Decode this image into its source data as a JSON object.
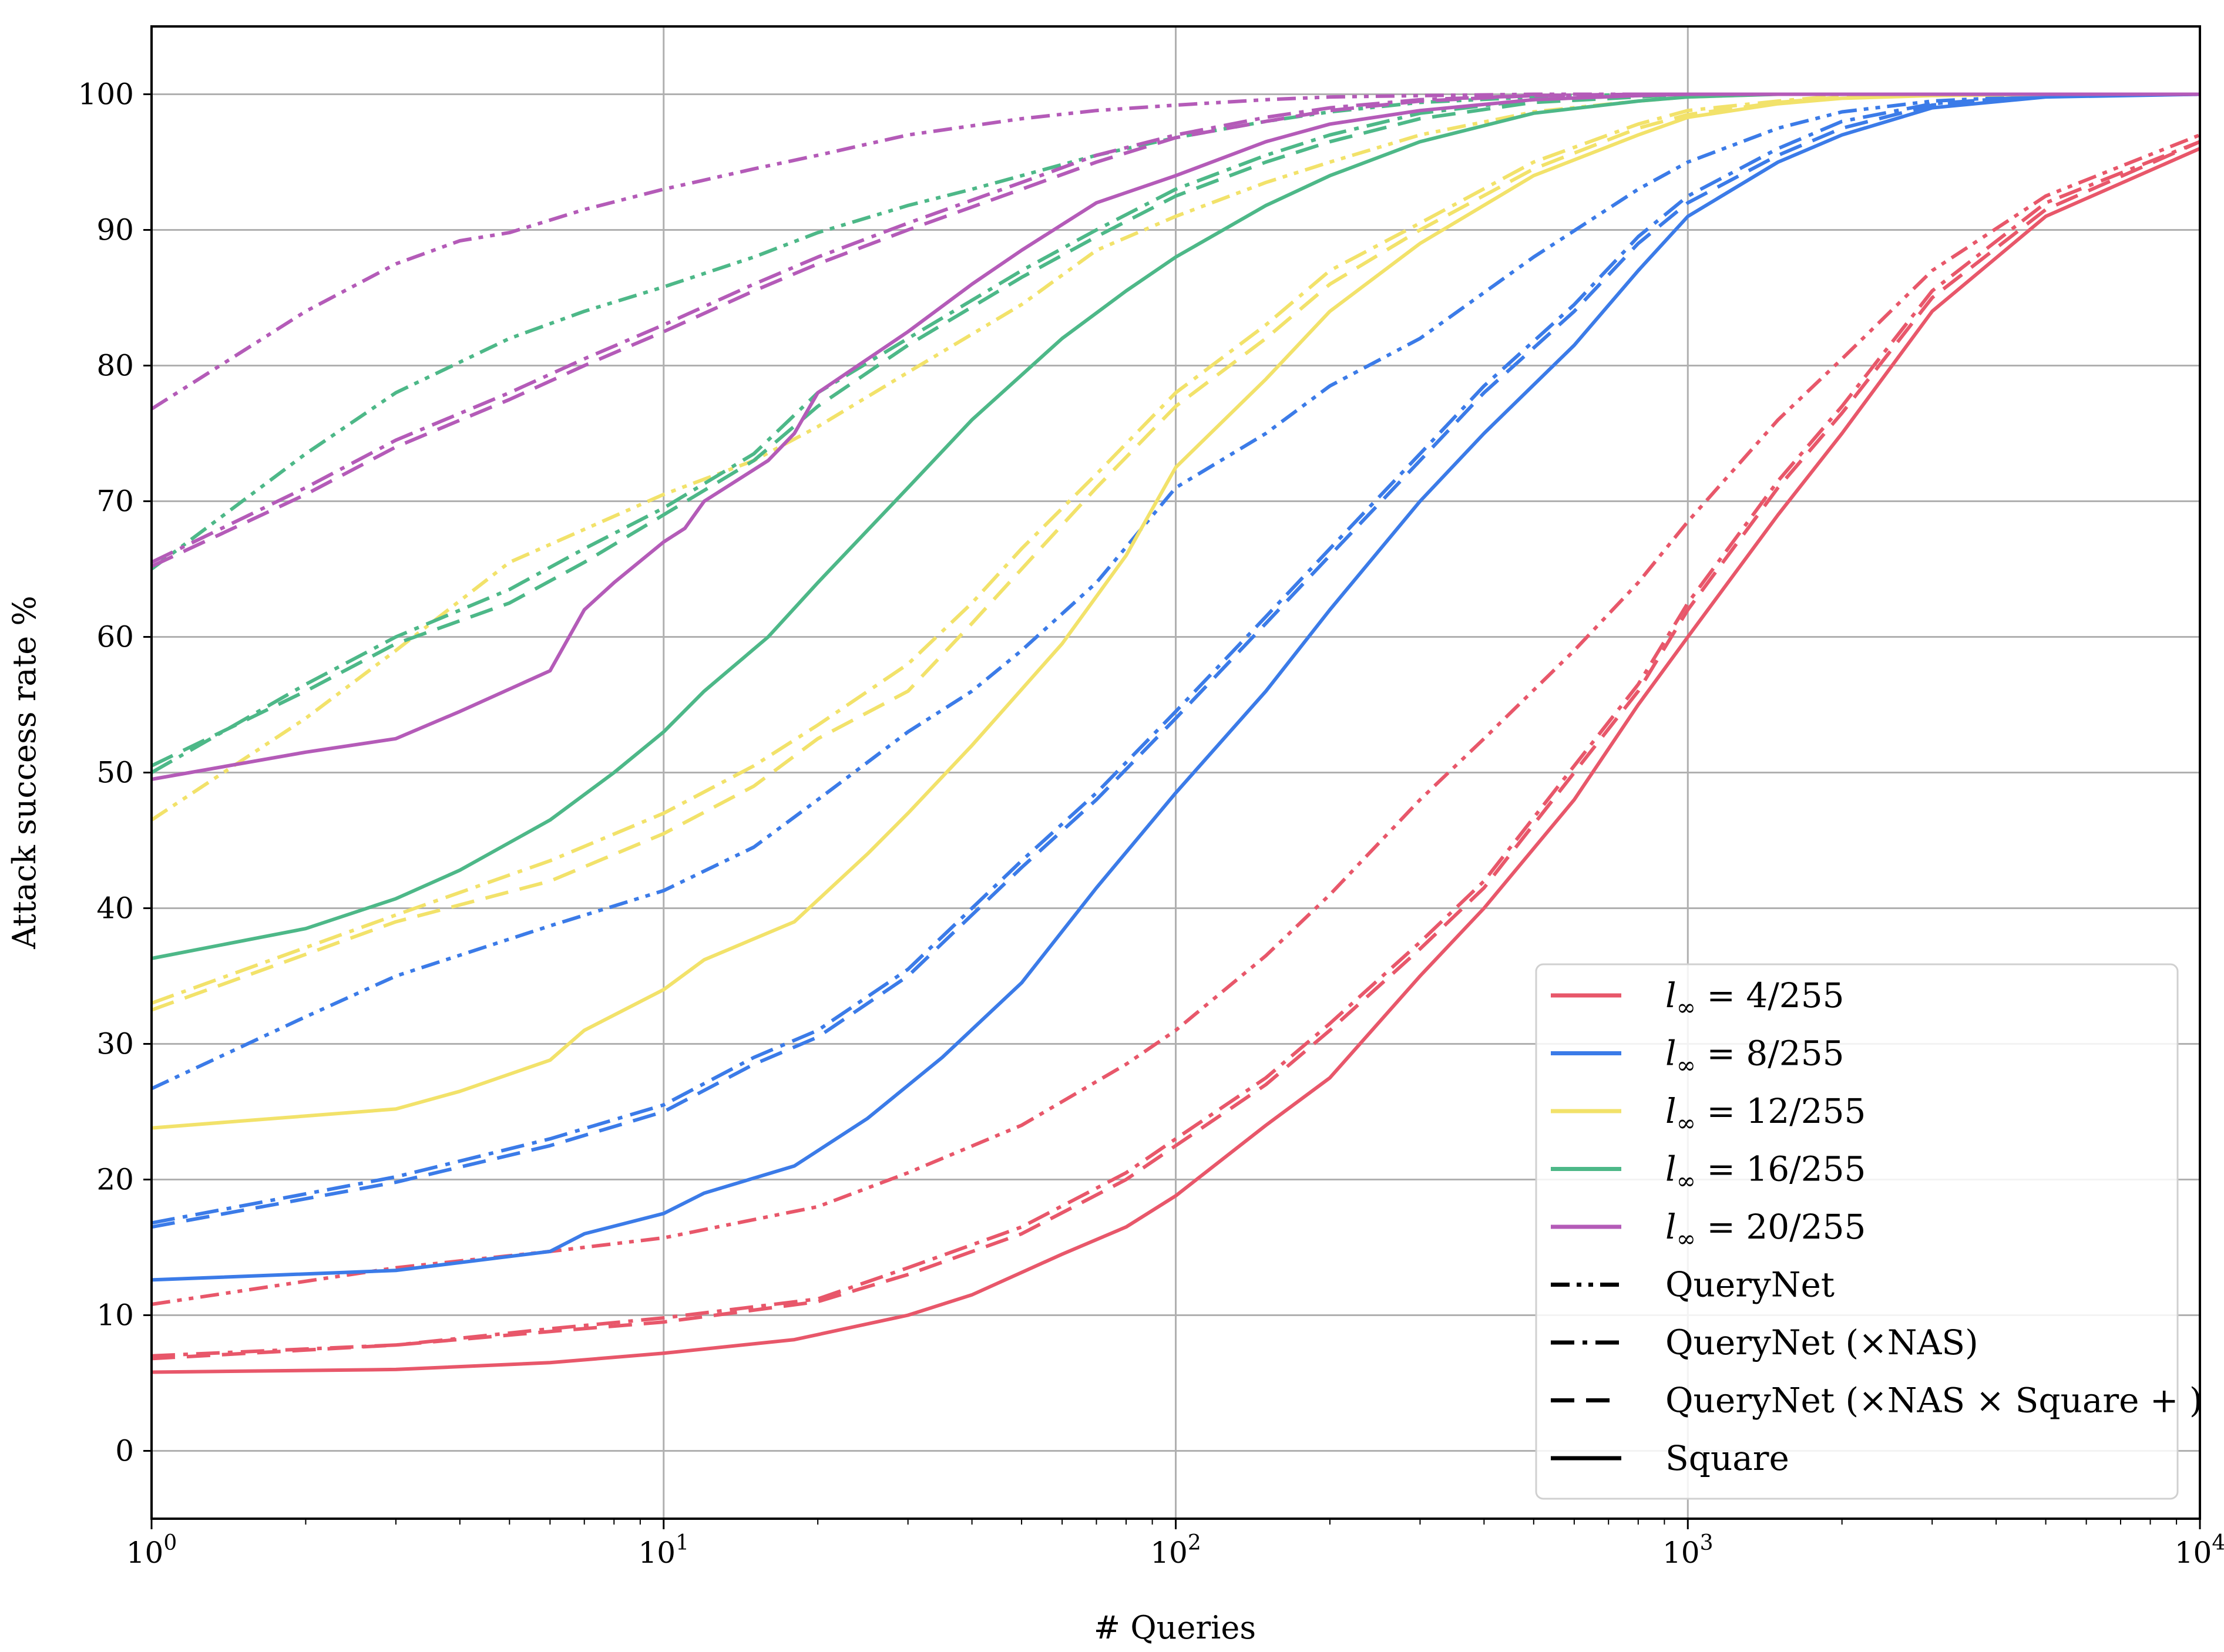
{
  "chart_data": {
    "type": "line",
    "xscale": "log",
    "xlabel": "# Queries",
    "ylabel": "Attack success rate %",
    "xlim": [
      1,
      10000
    ],
    "ylim": [
      -5,
      105
    ],
    "grid": true,
    "x_tick_labels": [
      {
        "base": "10",
        "exp": "0",
        "value": 1
      },
      {
        "base": "10",
        "exp": "1",
        "value": 10
      },
      {
        "base": "10",
        "exp": "2",
        "value": 100
      },
      {
        "base": "10",
        "exp": "3",
        "value": 1000
      },
      {
        "base": "10",
        "exp": "4",
        "value": 10000
      }
    ],
    "y_tick_labels": [
      "0",
      "10",
      "20",
      "30",
      "40",
      "50",
      "60",
      "70",
      "80",
      "90",
      "100"
    ],
    "legend_position": "lower-right",
    "legend_colors": [
      {
        "label_prefix": "l",
        "label_sub": "∞",
        "label_suffix": " = 4/255",
        "color": "#e8576a"
      },
      {
        "label_prefix": "l",
        "label_sub": "∞",
        "label_suffix": " = 8/255",
        "color": "#3b7be8"
      },
      {
        "label_prefix": "l",
        "label_sub": "∞",
        "label_suffix": " = 12/255",
        "color": "#f2e26a"
      },
      {
        "label_prefix": "l",
        "label_sub": "∞",
        "label_suffix": " = 16/255",
        "color": "#4db888"
      },
      {
        "label_prefix": "l",
        "label_sub": "∞",
        "label_suffix": " = 20/255",
        "color": "#b45bb8"
      }
    ],
    "legend_styles": [
      {
        "label": "QueryNet",
        "dash": "dashdotdot"
      },
      {
        "label": "QueryNet (×NAS)",
        "dash": "dashdot"
      },
      {
        "label": "QueryNet (×NAS × Square + )",
        "dash": "dashed"
      },
      {
        "label": "Square",
        "dash": "solid"
      }
    ],
    "series": [
      {
        "name": "l∞=4/255 Square",
        "color": "#e8576a",
        "dash": "solid",
        "x": [
          1,
          3,
          6,
          10,
          18,
          30,
          40,
          60,
          80,
          100,
          150,
          200,
          300,
          400,
          600,
          800,
          1000,
          1500,
          2000,
          3000,
          5000,
          10000
        ],
        "y": [
          5.8,
          6.0,
          6.5,
          7.2,
          8.2,
          10,
          11.5,
          14.5,
          16.5,
          18.8,
          24,
          27.5,
          35,
          40,
          48,
          55,
          60,
          69,
          75,
          84,
          91,
          96
        ]
      },
      {
        "name": "l∞=4/255 QueryNet (×NAS×Square+)",
        "color": "#e8576a",
        "dash": "dashed",
        "x": [
          1,
          3,
          6,
          10,
          20,
          30,
          50,
          80,
          100,
          150,
          200,
          300,
          400,
          600,
          800,
          1000,
          1500,
          2000,
          3000,
          5000,
          10000
        ],
        "y": [
          6.8,
          7.8,
          8.8,
          9.5,
          11,
          13,
          16,
          20,
          22.5,
          27,
          31,
          37,
          41.5,
          50,
          56,
          62,
          71,
          76.5,
          85,
          91.5,
          96.5
        ]
      },
      {
        "name": "l∞=4/255 QueryNet (×NAS)",
        "color": "#e8576a",
        "dash": "dashdot",
        "x": [
          1,
          3,
          6,
          10,
          20,
          30,
          50,
          80,
          100,
          150,
          200,
          300,
          400,
          600,
          800,
          1000,
          1500,
          2000,
          3000,
          5000,
          10000
        ],
        "y": [
          7.0,
          7.8,
          9.0,
          9.8,
          11.2,
          13.5,
          16.5,
          20.5,
          23,
          27.5,
          31.5,
          37.5,
          42,
          50.5,
          56.5,
          62.5,
          71.5,
          77,
          85.5,
          92,
          96.5
        ]
      },
      {
        "name": "l∞=4/255 QueryNet",
        "color": "#e8576a",
        "dash": "dashdotdot",
        "x": [
          1,
          3,
          6,
          10,
          20,
          30,
          50,
          80,
          100,
          150,
          200,
          300,
          400,
          600,
          800,
          1000,
          1500,
          2000,
          3000,
          5000,
          10000
        ],
        "y": [
          10.8,
          13.5,
          14.7,
          15.7,
          18,
          20.5,
          24,
          28.5,
          31,
          36.5,
          41,
          48,
          52.5,
          59,
          64,
          68.5,
          76,
          80.5,
          87,
          92.5,
          97
        ]
      },
      {
        "name": "l∞=8/255 Square",
        "color": "#3b7be8",
        "dash": "solid",
        "x": [
          1,
          3,
          6,
          7,
          10,
          12,
          18,
          25,
          35,
          50,
          70,
          100,
          150,
          200,
          300,
          400,
          600,
          800,
          1000,
          1500,
          2000,
          3000,
          5000,
          10000
        ],
        "y": [
          12.6,
          13.3,
          14.7,
          16,
          17.5,
          19,
          21,
          24.5,
          29,
          34.5,
          41.5,
          48.5,
          56,
          62,
          70,
          75,
          81.5,
          87,
          91,
          95,
          97,
          99,
          99.8,
          100
        ]
      },
      {
        "name": "l∞=8/255 QueryNet (×NAS×Square+)",
        "color": "#3b7be8",
        "dash": "dashed",
        "x": [
          1,
          3,
          6,
          10,
          15,
          20,
          30,
          50,
          70,
          100,
          150,
          200,
          300,
          400,
          600,
          800,
          1000,
          1500,
          2000,
          3000,
          5000,
          10000
        ],
        "y": [
          16.5,
          19.8,
          22.5,
          25,
          28.5,
          30.5,
          35,
          43,
          48,
          54,
          61,
          66,
          73,
          78,
          84,
          89,
          92,
          95.5,
          97.5,
          99.2,
          99.9,
          100
        ]
      },
      {
        "name": "l∞=8/255 QueryNet (×NAS)",
        "color": "#3b7be8",
        "dash": "dashdot",
        "x": [
          1,
          3,
          6,
          10,
          15,
          20,
          30,
          50,
          70,
          100,
          150,
          200,
          300,
          400,
          600,
          800,
          1000,
          1500,
          2000,
          3000,
          5000,
          10000
        ],
        "y": [
          16.8,
          20.2,
          23,
          25.5,
          29,
          31,
          35.5,
          43.5,
          48.5,
          54.5,
          61.5,
          66.5,
          73.5,
          78.5,
          84.5,
          89.5,
          92.5,
          96,
          98,
          99.3,
          99.9,
          100
        ]
      },
      {
        "name": "l∞=8/255 QueryNet",
        "color": "#3b7be8",
        "dash": "dashdotdot",
        "x": [
          1,
          2,
          3,
          6,
          10,
          15,
          20,
          30,
          40,
          50,
          70,
          100,
          150,
          200,
          300,
          500,
          800,
          1000,
          1500,
          2000,
          3000,
          5000,
          10000
        ],
        "y": [
          26.7,
          32,
          35,
          38.7,
          41.3,
          44.5,
          48,
          53,
          56,
          59,
          64,
          71,
          75,
          78.5,
          82,
          88,
          93,
          95,
          97.5,
          98.7,
          99.5,
          99.9,
          100
        ]
      },
      {
        "name": "l∞=12/255 Square",
        "color": "#f2e26a",
        "dash": "solid",
        "x": [
          1,
          3,
          4,
          6,
          7,
          10,
          12,
          18,
          25,
          30,
          40,
          60,
          80,
          100,
          150,
          200,
          300,
          500,
          800,
          1000,
          1500,
          2000,
          3000,
          5000,
          10000
        ],
        "y": [
          23.8,
          25.2,
          26.5,
          28.8,
          31,
          34,
          36.2,
          39,
          44,
          47,
          52,
          59.5,
          66,
          72.5,
          79,
          84,
          89,
          94,
          97,
          98.3,
          99.3,
          99.7,
          99.9,
          100,
          100
        ]
      },
      {
        "name": "l∞=12/255 QueryNet (×NAS×Square+)",
        "color": "#f2e26a",
        "dash": "dashed",
        "x": [
          1,
          3,
          6,
          10,
          15,
          20,
          30,
          40,
          50,
          70,
          100,
          150,
          200,
          300,
          500,
          800,
          1000,
          1500,
          2000,
          3000,
          5000,
          10000
        ],
        "y": [
          32.5,
          39,
          42,
          45.5,
          49,
          52.5,
          56,
          61,
          65,
          71,
          77,
          82,
          86,
          90,
          94.5,
          97.5,
          98.5,
          99.4,
          99.8,
          100,
          100,
          100
        ]
      },
      {
        "name": "l∞=12/255 QueryNet (×NAS)",
        "color": "#f2e26a",
        "dash": "dashdot",
        "x": [
          1,
          3,
          6,
          10,
          15,
          20,
          30,
          40,
          50,
          70,
          100,
          150,
          200,
          300,
          500,
          800,
          1000,
          1500,
          2000,
          3000,
          5000,
          10000
        ],
        "y": [
          33,
          39.5,
          43.5,
          47,
          50.5,
          53.5,
          58,
          62.5,
          66.5,
          72,
          78,
          83,
          87,
          90.5,
          95,
          97.8,
          98.8,
          99.5,
          99.9,
          100,
          100,
          100
        ]
      },
      {
        "name": "l∞=12/255 QueryNet",
        "color": "#f2e26a",
        "dash": "dashdotdot",
        "x": [
          1,
          2,
          3,
          5,
          10,
          15,
          20,
          30,
          50,
          70,
          100,
          150,
          200,
          300,
          500,
          800,
          1000,
          1500,
          2000,
          3000,
          5000,
          10000
        ],
        "y": [
          46.5,
          54,
          59,
          65.5,
          70.5,
          73,
          75.5,
          79.5,
          84.5,
          88.5,
          91,
          93.5,
          95,
          97,
          98.7,
          99.5,
          99.8,
          100,
          100,
          100,
          100,
          100
        ]
      },
      {
        "name": "l∞=16/255 Square",
        "color": "#4db888",
        "dash": "solid",
        "x": [
          1,
          2,
          3,
          4,
          6,
          8,
          10,
          12,
          16,
          20,
          30,
          40,
          60,
          80,
          100,
          150,
          200,
          300,
          500,
          800,
          1000,
          1500,
          2000,
          3000,
          5000,
          10000
        ],
        "y": [
          36.3,
          38.5,
          40.7,
          42.8,
          46.5,
          50,
          53,
          56,
          60,
          64,
          71,
          76,
          82,
          85.5,
          88,
          91.8,
          94,
          96.5,
          98.6,
          99.5,
          99.8,
          100,
          100,
          100,
          100,
          100
        ]
      },
      {
        "name": "l∞=16/255 QueryNet (×NAS×Square+)",
        "color": "#4db888",
        "dash": "dashed",
        "x": [
          1,
          2,
          3,
          5,
          7,
          10,
          15,
          20,
          30,
          50,
          70,
          100,
          150,
          200,
          300,
          500,
          800,
          1000,
          2000,
          5000,
          10000
        ],
        "y": [
          50.5,
          56,
          59.5,
          62.5,
          65.5,
          69,
          73,
          77,
          81.5,
          86.5,
          89.5,
          92.5,
          95,
          96.5,
          98.2,
          99.4,
          99.8,
          100,
          100,
          100,
          100
        ]
      },
      {
        "name": "l∞=16/255 QueryNet (×NAS)",
        "color": "#4db888",
        "dash": "dashdot",
        "x": [
          1,
          2,
          3,
          5,
          7,
          10,
          15,
          20,
          30,
          50,
          70,
          100,
          150,
          200,
          300,
          500,
          800,
          1000,
          2000,
          5000,
          10000
        ],
        "y": [
          50,
          56.5,
          60,
          63.5,
          66.5,
          69.5,
          73.5,
          78,
          82,
          87,
          90,
          93,
          95.5,
          97,
          98.6,
          99.6,
          99.9,
          100,
          100,
          100,
          100
        ]
      },
      {
        "name": "l∞=16/255 QueryNet",
        "color": "#4db888",
        "dash": "dashdotdot",
        "x": [
          1,
          2,
          3,
          5,
          7,
          10,
          15,
          20,
          30,
          40,
          50,
          70,
          100,
          150,
          200,
          300,
          500,
          800,
          1000,
          2000,
          5000,
          10000
        ],
        "y": [
          65,
          73.5,
          78,
          82,
          84,
          85.8,
          88,
          89.8,
          91.8,
          93,
          94,
          95.5,
          96.8,
          98,
          98.7,
          99.4,
          99.8,
          100,
          100,
          100,
          100,
          100
        ]
      },
      {
        "name": "l∞=20/255 Square",
        "color": "#b45bb8",
        "dash": "solid",
        "x": [
          1,
          2,
          3,
          4,
          6,
          7,
          8,
          10,
          11,
          12,
          16,
          18,
          20,
          30,
          40,
          50,
          70,
          100,
          150,
          200,
          300,
          500,
          800,
          1000,
          2000,
          5000,
          10000
        ],
        "y": [
          49.5,
          51.5,
          52.5,
          54.5,
          57.5,
          62,
          64,
          67,
          68,
          70,
          73,
          75,
          78,
          82.5,
          86,
          88.5,
          92,
          94,
          96.5,
          97.8,
          98.8,
          99.6,
          99.9,
          100,
          100,
          100,
          100
        ]
      },
      {
        "name": "l∞=20/255 QueryNet (×NAS×Square+)",
        "color": "#b45bb8",
        "dash": "dashed",
        "x": [
          1,
          2,
          3,
          5,
          7,
          10,
          15,
          20,
          30,
          50,
          70,
          100,
          150,
          200,
          300,
          500,
          800,
          1000,
          2000,
          5000,
          10000
        ],
        "y": [
          65.2,
          70.5,
          74,
          77.5,
          80,
          82.5,
          85.5,
          87.5,
          90,
          93,
          95,
          96.8,
          98,
          98.8,
          99.5,
          99.9,
          100,
          100,
          100,
          100,
          100
        ]
      },
      {
        "name": "l∞=20/255 QueryNet (×NAS)",
        "color": "#b45bb8",
        "dash": "dashdot",
        "x": [
          1,
          2,
          3,
          5,
          7,
          10,
          15,
          20,
          30,
          50,
          70,
          100,
          150,
          200,
          300,
          500,
          800,
          1000,
          2000,
          5000,
          10000
        ],
        "y": [
          65.5,
          71,
          74.5,
          78,
          80.5,
          83,
          86,
          88,
          90.5,
          93.5,
          95.5,
          97,
          98.3,
          99,
          99.6,
          99.9,
          100,
          100,
          100,
          100,
          100
        ]
      },
      {
        "name": "l∞=20/255 QueryNet",
        "color": "#b45bb8",
        "dash": "dashdotdot",
        "x": [
          1,
          2,
          3,
          4,
          5,
          7,
          10,
          15,
          20,
          30,
          50,
          70,
          100,
          150,
          200,
          300,
          500,
          1000,
          2000,
          5000,
          10000
        ],
        "y": [
          76.8,
          84,
          87.5,
          89.2,
          89.8,
          91.5,
          93,
          94.5,
          95.5,
          97,
          98.2,
          98.8,
          99.2,
          99.6,
          99.8,
          99.9,
          100,
          100,
          100,
          100,
          100
        ]
      }
    ]
  }
}
